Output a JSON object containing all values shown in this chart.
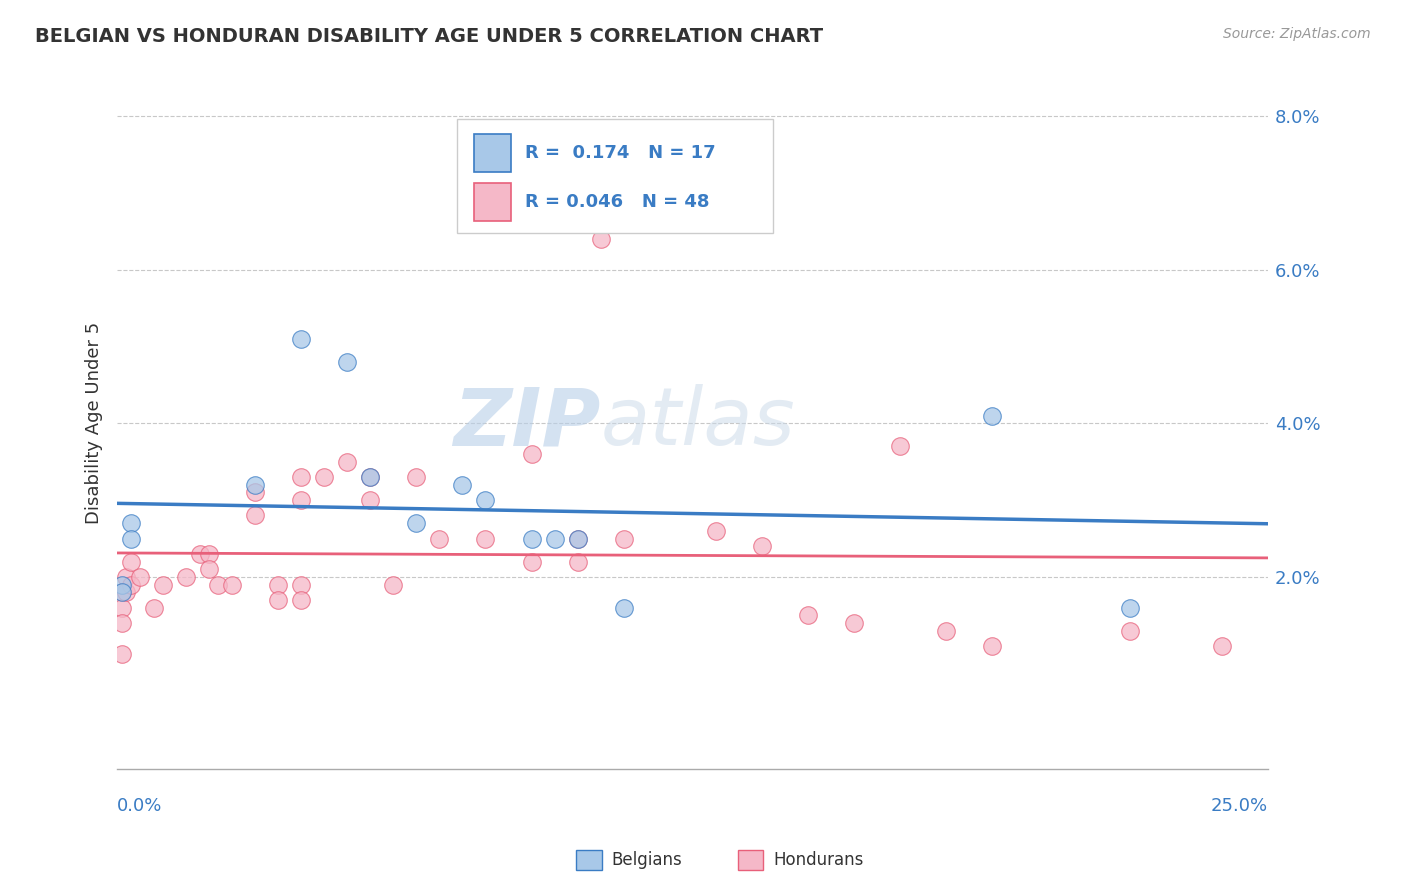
{
  "title": "BELGIAN VS HONDURAN DISABILITY AGE UNDER 5 CORRELATION CHART",
  "source": "Source: ZipAtlas.com",
  "ylabel": "Disability Age Under 5",
  "xlim": [
    0.0,
    0.25
  ],
  "ylim": [
    -0.005,
    0.085
  ],
  "yticks": [
    0.02,
    0.04,
    0.06,
    0.08
  ],
  "ytick_labels": [
    "2.0%",
    "4.0%",
    "6.0%",
    "8.0%"
  ],
  "belgian_R": "0.174",
  "belgian_N": "17",
  "honduran_R": "0.046",
  "honduran_N": "48",
  "belgian_color": "#a8c8e8",
  "honduran_color": "#f5b8c8",
  "belgian_line_color": "#3a7cc4",
  "honduran_line_color": "#e8607a",
  "watermark_zip": "ZIP",
  "watermark_atlas": "atlas",
  "background_color": "#ffffff",
  "belgian_points": [
    [
      0.001,
      0.019
    ],
    [
      0.001,
      0.018
    ],
    [
      0.003,
      0.027
    ],
    [
      0.003,
      0.025
    ],
    [
      0.03,
      0.032
    ],
    [
      0.04,
      0.051
    ],
    [
      0.05,
      0.048
    ],
    [
      0.055,
      0.033
    ],
    [
      0.065,
      0.027
    ],
    [
      0.075,
      0.032
    ],
    [
      0.08,
      0.03
    ],
    [
      0.09,
      0.025
    ],
    [
      0.095,
      0.025
    ],
    [
      0.1,
      0.025
    ],
    [
      0.11,
      0.016
    ],
    [
      0.19,
      0.041
    ],
    [
      0.22,
      0.016
    ]
  ],
  "honduran_points": [
    [
      0.001,
      0.018
    ],
    [
      0.001,
      0.016
    ],
    [
      0.001,
      0.014
    ],
    [
      0.001,
      0.01
    ],
    [
      0.002,
      0.02
    ],
    [
      0.002,
      0.018
    ],
    [
      0.003,
      0.022
    ],
    [
      0.003,
      0.019
    ],
    [
      0.005,
      0.02
    ],
    [
      0.008,
      0.016
    ],
    [
      0.01,
      0.019
    ],
    [
      0.015,
      0.02
    ],
    [
      0.018,
      0.023
    ],
    [
      0.02,
      0.023
    ],
    [
      0.02,
      0.021
    ],
    [
      0.022,
      0.019
    ],
    [
      0.025,
      0.019
    ],
    [
      0.03,
      0.031
    ],
    [
      0.03,
      0.028
    ],
    [
      0.035,
      0.019
    ],
    [
      0.035,
      0.017
    ],
    [
      0.04,
      0.033
    ],
    [
      0.04,
      0.03
    ],
    [
      0.04,
      0.019
    ],
    [
      0.04,
      0.017
    ],
    [
      0.045,
      0.033
    ],
    [
      0.05,
      0.035
    ],
    [
      0.055,
      0.033
    ],
    [
      0.055,
      0.03
    ],
    [
      0.06,
      0.019
    ],
    [
      0.065,
      0.033
    ],
    [
      0.07,
      0.025
    ],
    [
      0.08,
      0.025
    ],
    [
      0.09,
      0.036
    ],
    [
      0.09,
      0.022
    ],
    [
      0.1,
      0.025
    ],
    [
      0.1,
      0.022
    ],
    [
      0.105,
      0.064
    ],
    [
      0.11,
      0.025
    ],
    [
      0.13,
      0.026
    ],
    [
      0.14,
      0.024
    ],
    [
      0.15,
      0.015
    ],
    [
      0.16,
      0.014
    ],
    [
      0.17,
      0.037
    ],
    [
      0.18,
      0.013
    ],
    [
      0.19,
      0.011
    ],
    [
      0.22,
      0.013
    ],
    [
      0.24,
      0.011
    ]
  ]
}
